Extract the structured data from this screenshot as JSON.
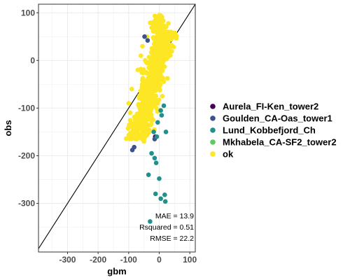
{
  "chart_data": {
    "type": "scatter",
    "xlabel": "gbm",
    "ylabel": "obs",
    "xlim": [
      -395,
      118
    ],
    "ylim": [
      -402,
      118
    ],
    "x_ticks": [
      -300,
      -200,
      -100,
      0,
      100
    ],
    "y_ticks": [
      100,
      0,
      -100,
      -200,
      -300
    ],
    "x_tick_labels": [
      "-300",
      "-200",
      "-100",
      "0",
      "100"
    ],
    "y_tick_labels": [
      "100",
      "0",
      "-100",
      "-200",
      "-300"
    ],
    "grid": true,
    "legend_position": "right",
    "reference_line": "identity (y = x)",
    "annotations": [
      "MAE = 13.9",
      "Rsquared = 0.51",
      "RMSE = 22.2"
    ],
    "series": [
      {
        "name": "Aurela_FI-Ken_tower2",
        "color": "#440154",
        "points": [
          [
            -13,
            -160
          ]
        ]
      },
      {
        "name": "Goulden_CA-Oas_tower1",
        "color": "#3b528b",
        "points": [
          [
            -48,
            50
          ],
          [
            -38,
            42
          ],
          [
            -88,
            -188
          ],
          [
            -82,
            -182
          ],
          [
            -15,
            -165
          ]
        ]
      },
      {
        "name": "Lund_Kobbefjord_Ch",
        "color": "#21908c",
        "points": [
          [
            15,
            -95
          ],
          [
            5,
            -105
          ],
          [
            8,
            -115
          ],
          [
            -5,
            -130
          ],
          [
            -18,
            -150
          ],
          [
            -8,
            -160
          ],
          [
            22,
            -150
          ],
          [
            -25,
            -195
          ],
          [
            -15,
            -205
          ],
          [
            -10,
            -215
          ],
          [
            -35,
            -240
          ],
          [
            0,
            -248
          ],
          [
            -12,
            -280
          ],
          [
            5,
            -290
          ],
          [
            18,
            -282
          ],
          [
            20,
            -296
          ],
          [
            -30,
            -338
          ]
        ]
      },
      {
        "name": "Mkhabela_CA-SF2_tower2",
        "color": "#5ec962",
        "points": []
      },
      {
        "name": "ok",
        "color": "#fde725",
        "cloud": true,
        "points": [
          [
            0,
            95
          ],
          [
            5,
            85
          ],
          [
            -10,
            80
          ],
          [
            -8,
            70
          ],
          [
            12,
            60
          ],
          [
            15,
            40
          ],
          [
            -40,
            50
          ],
          [
            -55,
            30
          ],
          [
            -60,
            10
          ],
          [
            -70,
            -20
          ],
          [
            -90,
            -60
          ],
          [
            -100,
            -90
          ],
          [
            -95,
            -110
          ],
          [
            -72,
            -120
          ],
          [
            -60,
            -140
          ],
          [
            -55,
            -160
          ],
          [
            -50,
            -170
          ],
          [
            -25,
            -120
          ],
          [
            -5,
            -90
          ],
          [
            10,
            -75
          ],
          [
            5,
            20
          ],
          [
            -15,
            0
          ],
          [
            -30,
            -40
          ]
        ]
      }
    ]
  }
}
